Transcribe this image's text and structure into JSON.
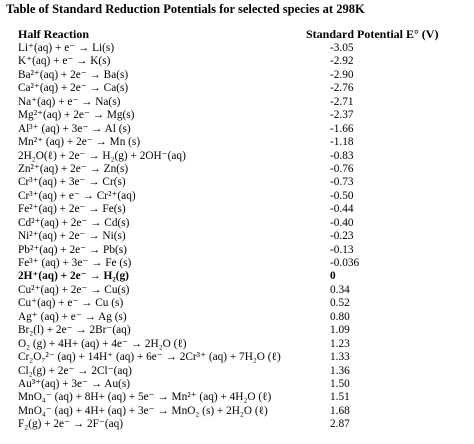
{
  "title": "Table of Standard Reduction Potentials for selected species at 298K",
  "table": {
    "header": [
      "Half Reaction",
      "Standard Potential E° (V)"
    ],
    "rows": [
      [
        "Li⁺(aq) + e⁻ → Li(s)",
        "-3.05"
      ],
      [
        "K⁺(aq) + e⁻ → K(s)",
        "-2.92"
      ],
      [
        "Ba²⁺(aq) + 2e⁻ → Ba(s)",
        "-2.90"
      ],
      [
        "Ca²⁺(aq) + 2e⁻ → Ca(s)",
        "-2.76"
      ],
      [
        "Na⁺(aq) + e⁻ → Na(s)",
        "-2.71"
      ],
      [
        "Mg²⁺(aq) + 2e⁻ → Mg(s)",
        "-2.37"
      ],
      [
        "Al³⁺ (aq) + 3e⁻ → Al (s)",
        "-1.66"
      ],
      [
        "Mn²⁺ (aq) + 2e⁻ → Mn (s)",
        "-1.18"
      ],
      [
        "2H₂O(ℓ) + 2e⁻ → H₂(g) + 2OH⁻(aq)",
        "-0.83"
      ],
      [
        "Zn²⁺(aq) + 2e⁻ → Zn(s)",
        "-0.76"
      ],
      [
        "Cr³⁺(aq) + 3e⁻ → Cr(s)",
        "-0.73"
      ],
      [
        "Cr³⁺(aq) + e⁻ → Cr²⁺(aq)",
        "-0.50"
      ],
      [
        "Fe²⁺(aq) + 2e⁻ → Fe(s)",
        "-0.44"
      ],
      [
        "Cd²⁺(aq) + 2e⁻ → Cd(s)",
        "-0.40"
      ],
      [
        "Ni²⁺(aq) + 2e⁻ → Ni(s)",
        "-0.23"
      ],
      [
        "Pb²⁺(aq) + 2e⁻ → Pb(s)",
        "-0.13"
      ],
      [
        "Fe³⁺ (aq) + 3e⁻ → Fe (s)",
        "-0.036"
      ],
      [
        "2H⁺(aq) + 2e⁻ → H₂(g)",
        "0"
      ],
      [
        "Cu²⁺(aq) + 2e⁻ → Cu(s)",
        "0.34"
      ],
      [
        "Cu⁺(aq) + e⁻ → Cu (s)",
        "0.52"
      ],
      [
        "Ag⁺ (aq) + e⁻ → Ag (s)",
        "0.80"
      ],
      [
        "Br₂(l) + 2e⁻ → 2Br⁻(aq)",
        "1.09"
      ],
      [
        "O₂ (g) + 4H+ (aq) + 4e⁻ → 2H₂O (ℓ)",
        "1.23"
      ],
      [
        "Cr₂O₇²⁻ (aq) + 14H⁺ (aq) + 6e⁻ → 2Cr³⁺ (aq) + 7H₂O (ℓ)",
        "1.33"
      ],
      [
        "Cl₂(g) + 2e⁻ → 2Cl⁻(aq)",
        "1.36"
      ],
      [
        "Au³⁺(aq) + 3e⁻ → Au(s)",
        "1.50"
      ],
      [
        "MnO₄⁻ (aq) + 8H+ (aq) + 5e⁻ → Mn²⁺ (aq) + 4H₂O (ℓ)",
        "1.51"
      ],
      [
        "MnO₄⁻ (aq) + 4H+ (aq) + 3e⁻ → MnO₂ (s) + 2H₂O (ℓ)",
        "1.68"
      ],
      [
        "F₂(g) + 2e⁻ → 2F⁻(aq)",
        "2.87"
      ]
    ]
  }
}
